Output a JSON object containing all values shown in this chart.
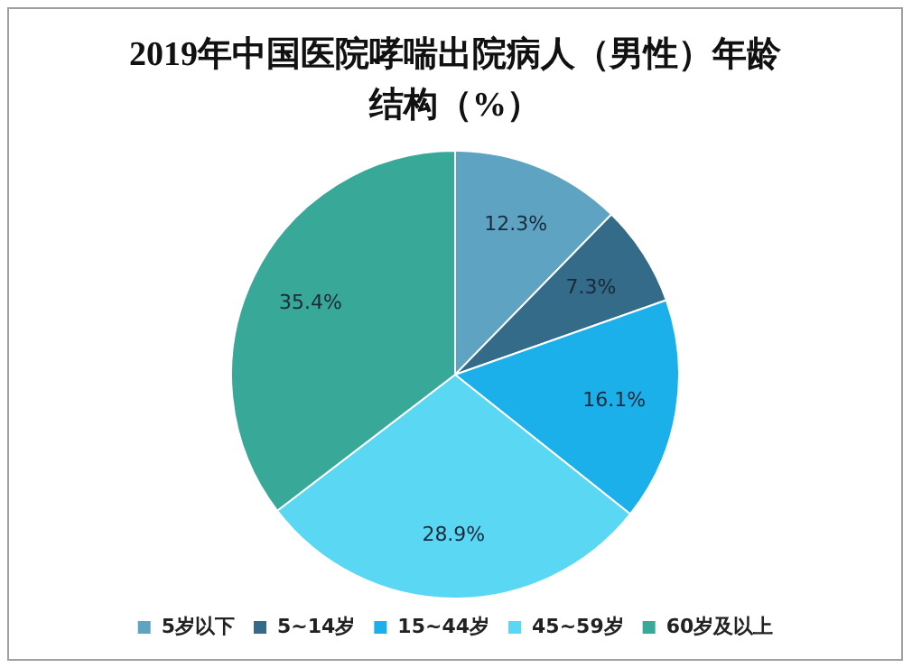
{
  "chart_data": {
    "type": "pie",
    "title": "2019年中国医院哮喘出院病人（男性）年龄结构（%）",
    "categories": [
      "5岁以下",
      "5~14岁",
      "15~44岁",
      "45~59岁",
      "60岁及以上"
    ],
    "values": [
      12.3,
      7.3,
      16.1,
      28.9,
      35.4
    ],
    "colors": [
      "#5fa3c3",
      "#336b88",
      "#1cb0ea",
      "#5ad7f3",
      "#38a898"
    ],
    "value_labels": [
      "12.3%",
      "7.3%",
      "16.1%",
      "28.9%",
      "35.4%"
    ],
    "legend": "bottom"
  }
}
